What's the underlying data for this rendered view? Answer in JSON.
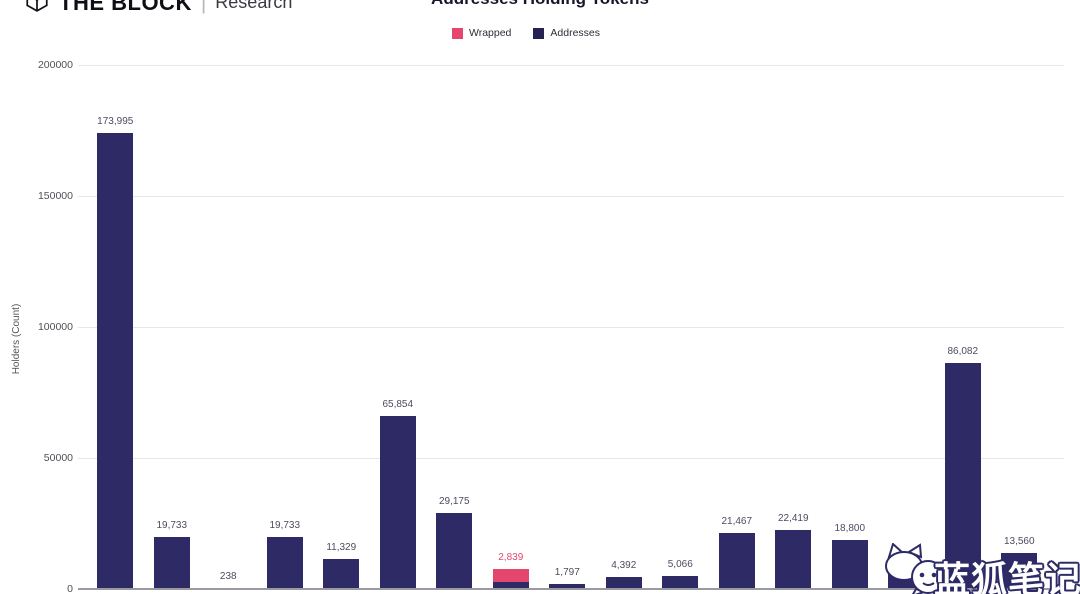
{
  "header": {
    "brand_name": "THE BLOCK",
    "brand_divider": "|",
    "brand_sub": "Research",
    "title": "Addresses Holding Tokens"
  },
  "legend": {
    "items": [
      {
        "label": "Wrapped",
        "color": "#e5466d"
      },
      {
        "label": "Addresses",
        "color": "#262254"
      }
    ]
  },
  "watermark": {
    "text": "蓝狐笔记"
  },
  "colors": {
    "bar_addresses": "#2d2a66",
    "bar_wrapped": "#e5466d",
    "bar_label": "#4c4c60",
    "axis_line": "#9a9aa2",
    "gridline": "#e7e7eb"
  },
  "chart_data": {
    "type": "bar",
    "stacked": true,
    "title": "Addresses Holding Tokens",
    "ylabel": "Holders (Count)",
    "ylim": [
      0,
      200000
    ],
    "ytick_values": [
      0,
      50000,
      100000,
      150000,
      200000
    ],
    "ytick_labels": [
      "0",
      "50000",
      "100000",
      "150000",
      "200000"
    ],
    "grid": true,
    "legend_position": "top",
    "x_labels_visible": false,
    "series_names": [
      "Wrapped",
      "Addresses"
    ],
    "bars": [
      {
        "label": "173,995",
        "addresses": 173995,
        "wrapped": 0
      },
      {
        "label": "19,733",
        "addresses": 19733,
        "wrapped": 0
      },
      {
        "label": "238",
        "addresses": 238,
        "wrapped": 0
      },
      {
        "label": "19,733",
        "addresses": 19733,
        "wrapped": 0
      },
      {
        "label": "11,329",
        "addresses": 11329,
        "wrapped": 0
      },
      {
        "label": "65,854",
        "addresses": 65854,
        "wrapped": 0
      },
      {
        "label": "29,175",
        "addresses": 29175,
        "wrapped": 0
      },
      {
        "label": "2,839",
        "addresses": 2839,
        "wrapped": 4800
      },
      {
        "label": "1,797",
        "addresses": 1797,
        "wrapped": 0
      },
      {
        "label": "4,392",
        "addresses": 4392,
        "wrapped": 0
      },
      {
        "label": "5,066",
        "addresses": 5066,
        "wrapped": 0
      },
      {
        "label": "21,467",
        "addresses": 21467,
        "wrapped": 0
      },
      {
        "label": "22,419",
        "addresses": 22419,
        "wrapped": 0
      },
      {
        "label": "18,800",
        "addresses": 18800,
        "wrapped": 0
      },
      {
        "label": "",
        "addresses": 6000,
        "wrapped": 0
      },
      {
        "label": "86,082",
        "addresses": 86082,
        "wrapped": 0
      },
      {
        "label": "13,560",
        "addresses": 13560,
        "wrapped": 0
      }
    ]
  }
}
